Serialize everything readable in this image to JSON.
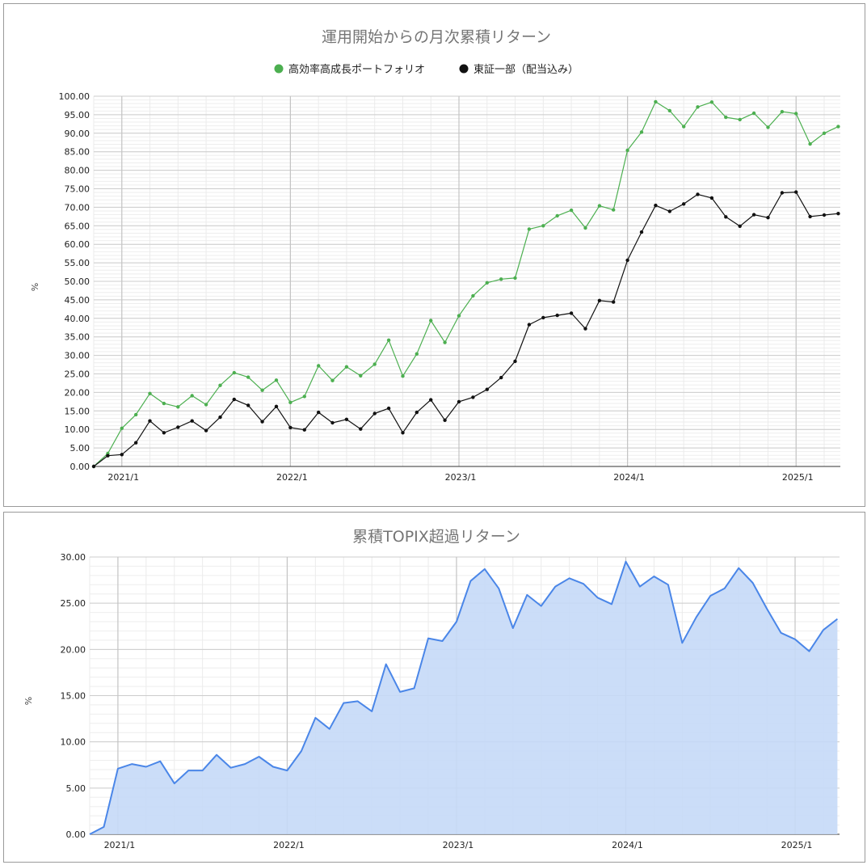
{
  "charts": {
    "chart1": {
      "title": "運用開始からの月次累積リターン",
      "ylabel": "%",
      "legend": [
        "高効率高成長ポートフォリオ",
        "東証一部（配当込み）"
      ],
      "y_ticks": [
        "100.00",
        "95.00",
        "90.00",
        "85.00",
        "80.00",
        "75.00",
        "70.00",
        "65.00",
        "60.00",
        "55.00",
        "50.00",
        "45.00",
        "40.00",
        "35.00",
        "30.00",
        "25.00",
        "20.00",
        "15.00",
        "10.00",
        "5.00",
        "0.00"
      ],
      "x_ticks": [
        "2021/1",
        "2022/1",
        "2023/1",
        "2024/1",
        "2025/1"
      ]
    },
    "chart2": {
      "title": "累積TOPIX超過リターン",
      "ylabel": "%",
      "y_ticks": [
        "30.00",
        "25.00",
        "20.00",
        "15.00",
        "10.00",
        "5.00",
        "0.00"
      ],
      "x_ticks": [
        "2021/1",
        "2022/1",
        "2023/1",
        "2024/1",
        "2025/1"
      ]
    }
  },
  "chart_data": [
    {
      "type": "line",
      "title": "運用開始からの月次累積リターン",
      "ylabel": "%",
      "xlabel": "",
      "ylim": [
        0,
        100
      ],
      "grid": true,
      "legend_position": "top",
      "x_start": "2020/11",
      "x_tick_labels": [
        "2021/1",
        "2022/1",
        "2023/1",
        "2024/1",
        "2025/1"
      ],
      "series": [
        {
          "name": "高効率高成長ポートフォリオ",
          "color": "#4caf50",
          "values": [
            0,
            3.5,
            10.3,
            14,
            19.7,
            17,
            16.1,
            19.1,
            16.7,
            21.9,
            25.3,
            24.1,
            20.6,
            23.3,
            17.3,
            18.9,
            27.2,
            23.2,
            26.9,
            24.5,
            27.6,
            34.1,
            24.4,
            30.4,
            39.4,
            33.5,
            40.7,
            46.1,
            49.6,
            50.6,
            50.9,
            64.1,
            65,
            67.7,
            69.2,
            64.4,
            70.4,
            69.3,
            85.4,
            90.3,
            98.5,
            96.1,
            91.8,
            97.1,
            98.4,
            94.3,
            93.7,
            95.4,
            91.6,
            95.8,
            95.3,
            87.1,
            90,
            91.8
          ]
        },
        {
          "name": "東証一部（配当込み）",
          "color": "#111111",
          "values": [
            0,
            2.9,
            3.2,
            6.4,
            12.3,
            9.1,
            10.6,
            12.3,
            9.7,
            13.3,
            18.1,
            16.5,
            12.1,
            16.2,
            10.5,
            9.9,
            14.6,
            11.8,
            12.7,
            10.1,
            14.3,
            15.7,
            9.1,
            14.6,
            18,
            12.5,
            17.5,
            18.7,
            20.8,
            24,
            28.4,
            38.3,
            40.2,
            40.8,
            41.4,
            37.2,
            44.8,
            44.4,
            55.7,
            63.3,
            70.5,
            68.9,
            70.9,
            73.5,
            72.5,
            67.4,
            64.9,
            68,
            67.2,
            73.9,
            74.1,
            67.5,
            67.9,
            68.3
          ]
        }
      ]
    },
    {
      "type": "area",
      "title": "累積TOPIX超過リターン",
      "ylabel": "%",
      "xlabel": "",
      "ylim": [
        0,
        30
      ],
      "grid": true,
      "x_start": "2020/11",
      "x_tick_labels": [
        "2021/1",
        "2022/1",
        "2023/1",
        "2024/1",
        "2025/1"
      ],
      "series": [
        {
          "name": "",
          "color": "#4a86e8",
          "fill": "#c5d9f7",
          "values": [
            0,
            0.8,
            7.1,
            7.6,
            7.3,
            7.9,
            5.5,
            6.9,
            6.9,
            8.6,
            7.2,
            7.6,
            8.4,
            7.3,
            6.9,
            9,
            12.6,
            11.4,
            14.2,
            14.4,
            13.3,
            18.4,
            15.4,
            15.8,
            21.2,
            20.9,
            23,
            27.4,
            28.7,
            26.6,
            22.3,
            25.9,
            24.7,
            26.8,
            27.7,
            27.1,
            25.6,
            24.9,
            29.5,
            26.8,
            27.9,
            27,
            20.7,
            23.5,
            25.8,
            26.6,
            28.8,
            27.2,
            24.4,
            21.8,
            21.1,
            19.8,
            22.1,
            23.3
          ]
        }
      ]
    }
  ]
}
